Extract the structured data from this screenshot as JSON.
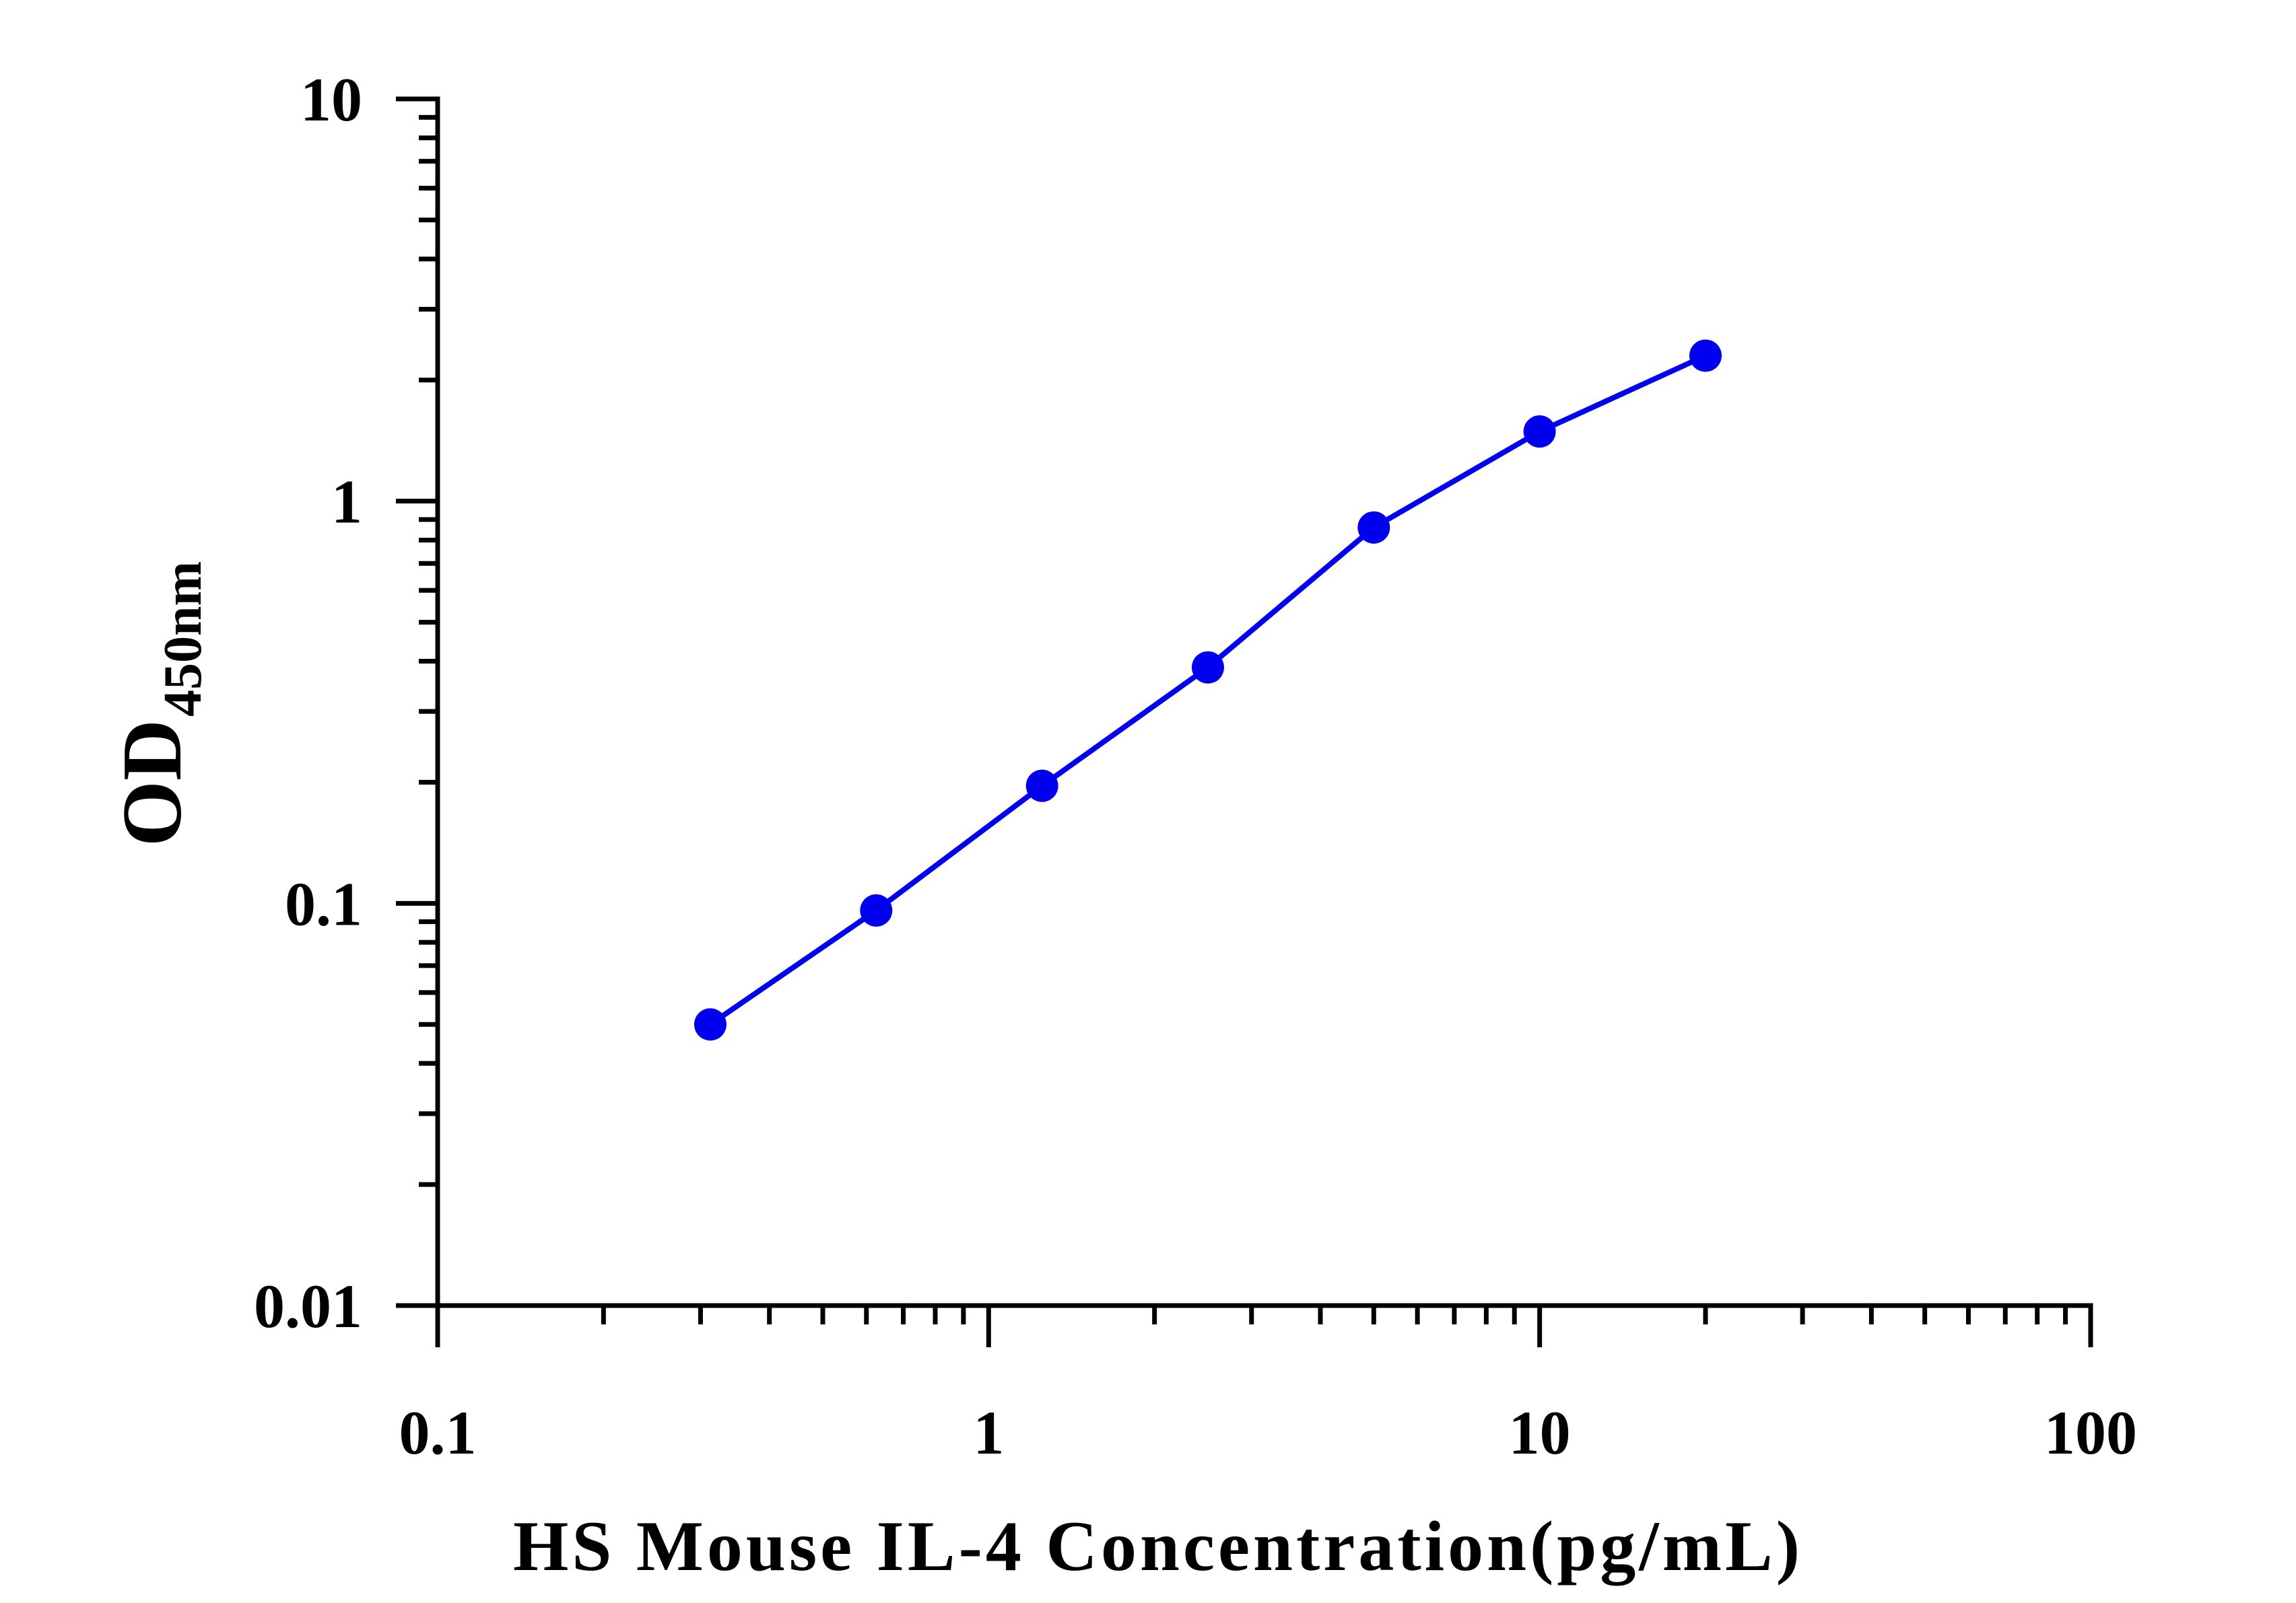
{
  "chart_data": {
    "type": "line",
    "title": "",
    "xlabel": "HS Mouse IL-4 Concentration(pg/mL)",
    "ylabel": {
      "main": "OD",
      "subscript": "450nm"
    },
    "x_scale": "log",
    "y_scale": "log",
    "xlim": [
      0.1,
      100
    ],
    "ylim": [
      0.01,
      10
    ],
    "x_tick_labels": [
      "0.1",
      "1",
      "10",
      "100"
    ],
    "y_tick_labels": [
      "0.01",
      "0.1",
      "1",
      "10"
    ],
    "grid": false,
    "legend": "none",
    "series": [
      {
        "color": "#0000ee",
        "marker": "circle",
        "x": [
          0.3125,
          0.625,
          1.25,
          2.5,
          5,
          10,
          20
        ],
        "y": [
          0.05,
          0.096,
          0.196,
          0.386,
          0.86,
          1.49,
          2.3
        ]
      }
    ]
  }
}
